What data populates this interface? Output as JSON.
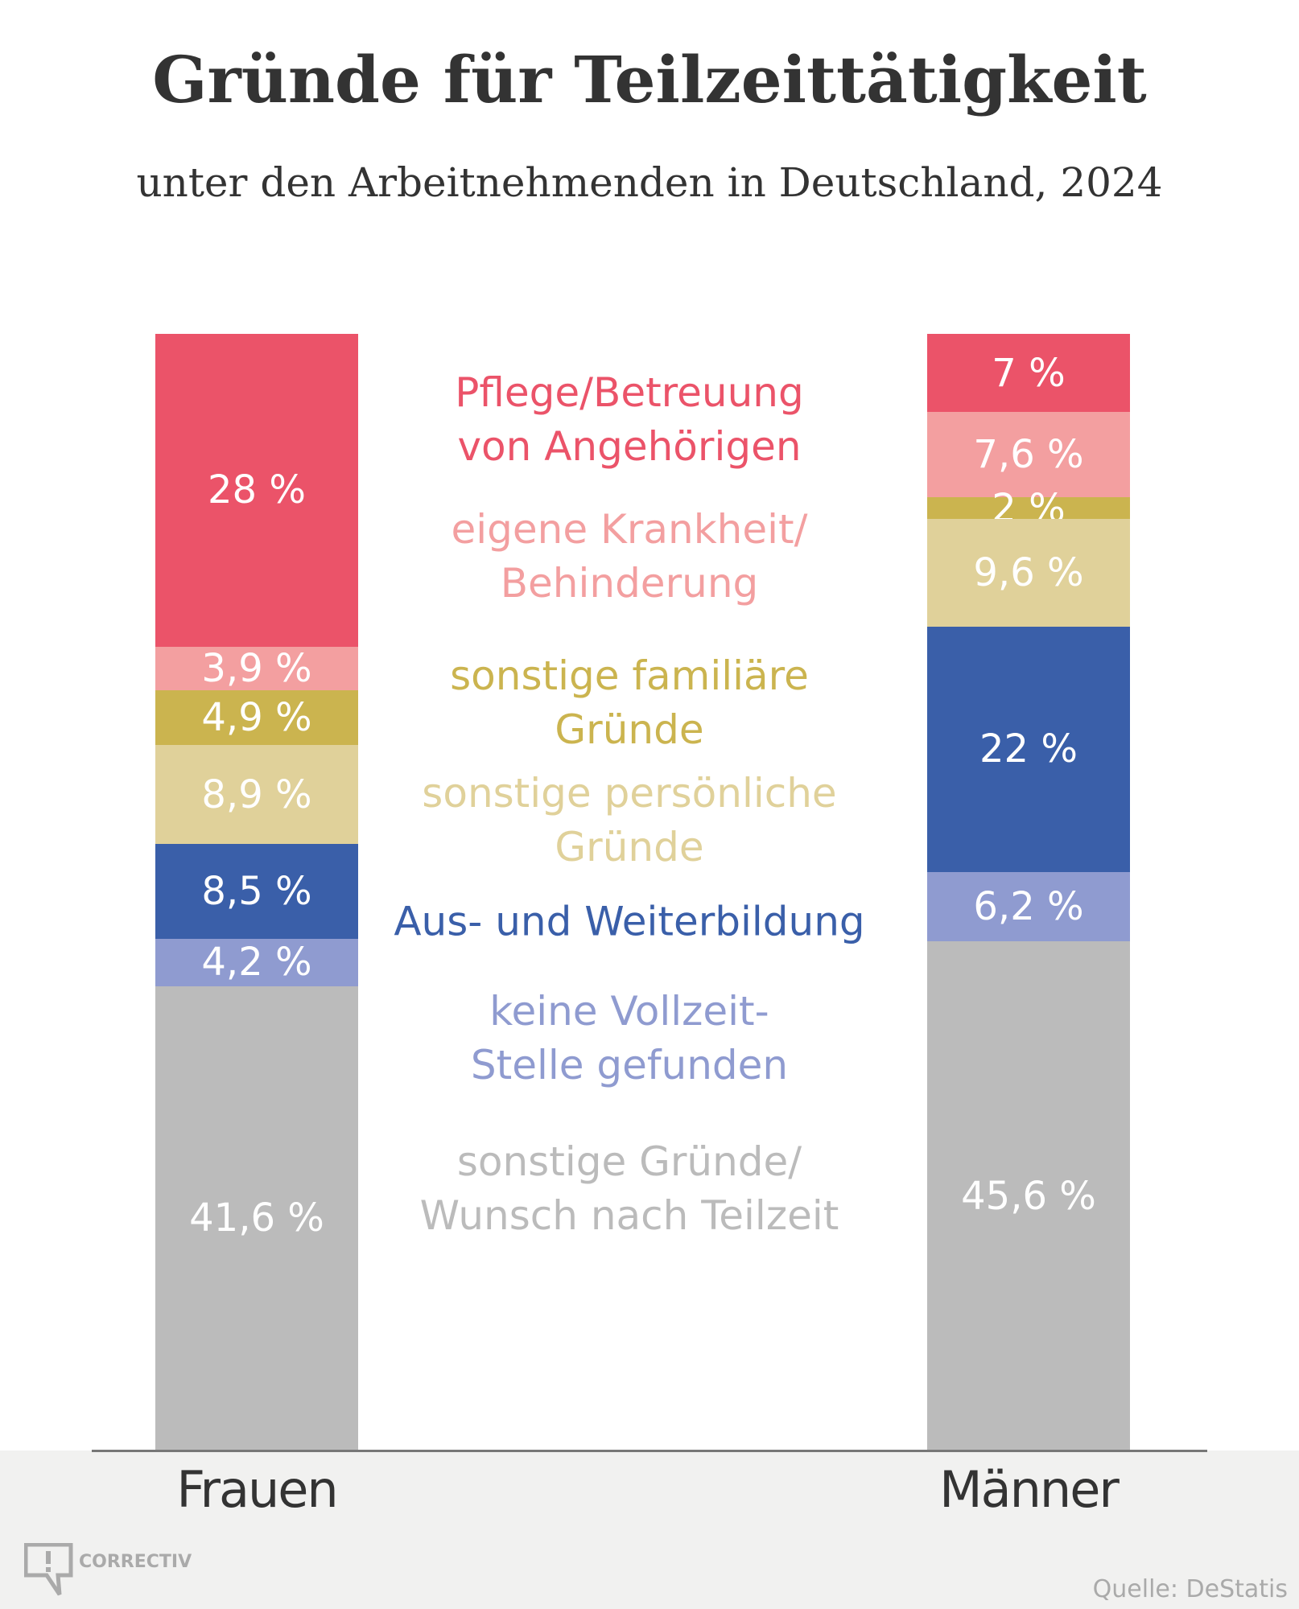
{
  "chart_data": {
    "type": "bar",
    "stacked": true,
    "title": "Gründe für Teilzeittätigkeit",
    "subtitle": "unter den Arbeitnehmenden in Deutschland, 2024",
    "categories": [
      "Frauen",
      "Männer"
    ],
    "ylim": [
      0,
      100
    ],
    "unit": "%",
    "series": [
      {
        "name": "Pflege/Betreuung von Angehörigen",
        "lines": [
          "Pflege/Betreuung",
          "von Angehörigen"
        ],
        "color": "#EB5369",
        "values": [
          28,
          7
        ],
        "labels": [
          "28 %",
          "7 %"
        ]
      },
      {
        "name": "eigene Krankheit/ Behinderung",
        "lines": [
          "eigene Krankheit/",
          "Behinderung"
        ],
        "color": "#F39FA0",
        "values": [
          3.9,
          7.6
        ],
        "labels": [
          "3,9 %",
          "7,6 %"
        ]
      },
      {
        "name": "sonstige familiäre Gründe",
        "lines": [
          "sonstige familiäre",
          "Gründe"
        ],
        "color": "#CBB44F",
        "values": [
          4.9,
          2
        ],
        "labels": [
          "4,9 %",
          "2 %"
        ]
      },
      {
        "name": "sonstige persönliche Gründe",
        "lines": [
          "sonstige persönliche",
          "Gründe"
        ],
        "color": "#E0D19A",
        "values": [
          8.9,
          9.6
        ],
        "labels": [
          "8,9 %",
          "9,6 %"
        ]
      },
      {
        "name": "Aus- und Weiterbildung",
        "lines": [
          "Aus- und Weiterbildung"
        ],
        "color": "#3A5FA9",
        "values": [
          8.5,
          22
        ],
        "labels": [
          "8,5 %",
          "22 %"
        ]
      },
      {
        "name": "keine Vollzeit-Stelle gefunden",
        "lines": [
          "keine Vollzeit-",
          "Stelle gefunden"
        ],
        "color": "#8F9BD0",
        "values": [
          4.2,
          6.2
        ],
        "labels": [
          "4,2 %",
          "6,2 %"
        ]
      },
      {
        "name": "sonstige Gründe/ Wunsch nach Teilzeit",
        "lines": [
          "sonstige Gründe/",
          "Wunsch nach Teilzeit"
        ],
        "color": "#BBBBBB",
        "values": [
          41.6,
          45.6
        ],
        "labels": [
          "41,6 %",
          "45,6 %"
        ]
      }
    ],
    "legend": "center"
  },
  "branding": {
    "logo": "CORRECTIV"
  },
  "source": "Quelle: DeStatis"
}
